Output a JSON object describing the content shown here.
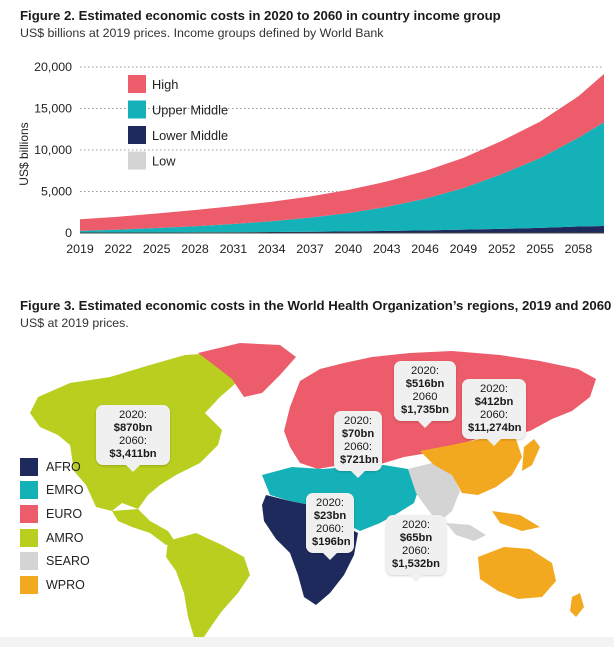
{
  "figure2": {
    "title": "Figure 2. Estimated economic costs in 2020 to 2060 in country income group",
    "subtitle": "US$ billions at 2019 prices. Income groups defined by World Bank"
  },
  "figure3": {
    "title": "Figure 3. Estimated economic costs in the World Health Organization’s regions, 2019 and 2060",
    "subtitle": "US$ at 2019 prices."
  },
  "chart_data": [
    {
      "type": "area",
      "stacked": true,
      "title": "",
      "xlabel": "",
      "ylabel": "US$ billions",
      "x_ticks": [
        "2019",
        "2022",
        "2025",
        "2028",
        "2031",
        "2034",
        "2037",
        "2040",
        "2043",
        "2046",
        "2049",
        "2052",
        "2055",
        "2058"
      ],
      "y_ticks": [
        "0",
        "5,000",
        "10,000",
        "15,000",
        "20,000"
      ],
      "ylim": [
        0,
        20000
      ],
      "xlim": [
        2019,
        2060
      ],
      "grid": "horizontal dotted",
      "legend_position": "top-left",
      "x": [
        2019,
        2022,
        2025,
        2028,
        2031,
        2034,
        2037,
        2040,
        2043,
        2046,
        2049,
        2052,
        2055,
        2058,
        2060
      ],
      "series": [
        {
          "name": "Lower Middle",
          "color": "#1f2a5c",
          "values": [
            10,
            30,
            50,
            70,
            90,
            120,
            150,
            200,
            250,
            320,
            400,
            500,
            620,
            780,
            850
          ]
        },
        {
          "name": "Upper Middle",
          "color": "#14b1b8",
          "values": [
            250,
            380,
            550,
            750,
            1000,
            1300,
            1700,
            2200,
            2900,
            3800,
            5000,
            6600,
            8400,
            10700,
            12500
          ]
        },
        {
          "name": "High",
          "color": "#ec5c6a",
          "values": [
            1400,
            1550,
            1750,
            1950,
            2150,
            2350,
            2550,
            2800,
            3050,
            3350,
            3650,
            4000,
            4400,
            5000,
            5800
          ]
        },
        {
          "name": "Low",
          "color": "#d4d4d4",
          "values": [
            0,
            0,
            0,
            0,
            0,
            0,
            0,
            0,
            0,
            0,
            0,
            0,
            0,
            0,
            0
          ]
        }
      ],
      "legend_order": [
        "High",
        "Upper Middle",
        "Lower Middle",
        "Low"
      ]
    },
    {
      "type": "map",
      "legend": [
        {
          "name": "AFRO",
          "color": "#1f2a5c"
        },
        {
          "name": "EMRO",
          "color": "#14b1b8"
        },
        {
          "name": "EURO",
          "color": "#ec5c6a"
        },
        {
          "name": "AMRO",
          "color": "#b9ce1f"
        },
        {
          "name": "SEARO",
          "color": "#d4d4d4"
        },
        {
          "name": "WPRO",
          "color": "#f3a91f"
        }
      ],
      "callouts": [
        {
          "region": "AMRO",
          "line1": "2020:",
          "val1": "$870bn",
          "line2": "2060:",
          "val2": "$3,411bn"
        },
        {
          "region": "EMRO",
          "line1": "2020:",
          "val1": "$70bn",
          "line2": "2060:",
          "val2": "$721bn"
        },
        {
          "region": "EURO",
          "line1": "2020:",
          "val1": "$516bn",
          "line2": "2060",
          "val2": "$1,735bn"
        },
        {
          "region": "WPRO",
          "line1": "2020:",
          "val1": "$412bn",
          "line2": "2060:",
          "val2": "$11,274bn"
        },
        {
          "region": "AFRO",
          "line1": "2020:",
          "val1": "$23bn",
          "line2": "2060:",
          "val2": "$196bn"
        },
        {
          "region": "SEARO",
          "line1": "2020:",
          "val1": "$65bn",
          "line2": "2060:",
          "val2": "$1,532bn"
        }
      ]
    }
  ]
}
